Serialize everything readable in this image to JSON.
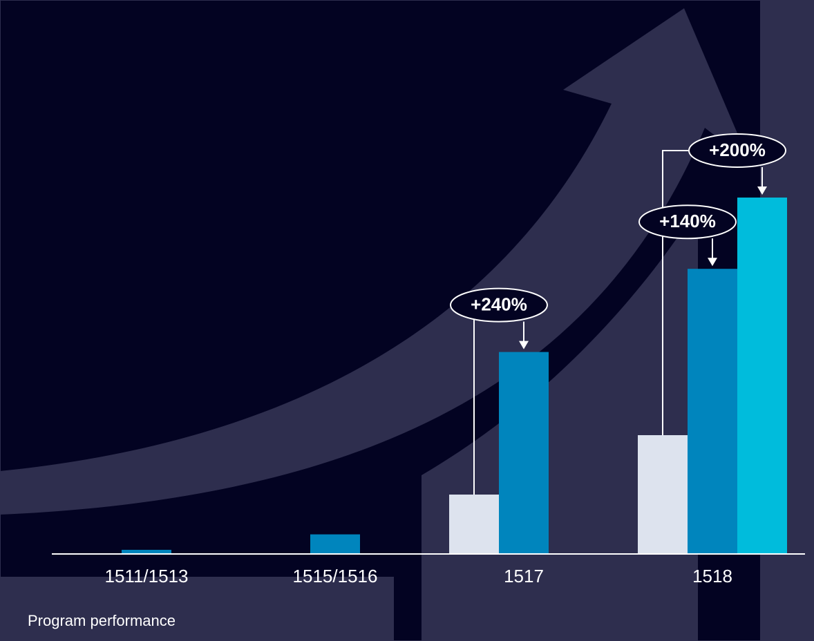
{
  "chart_data": {
    "type": "bar",
    "categories": [
      "1511/1513",
      "1515/1516",
      "1517",
      "1518"
    ],
    "series": [
      {
        "color": "#dde3ee",
        "values": [
          null,
          null,
          100,
          200
        ]
      },
      {
        "color": "#0085bd",
        "values": [
          7,
          33,
          340,
          480
        ]
      },
      {
        "color": "#00bcdc",
        "values": [
          null,
          null,
          null,
          600
        ]
      }
    ],
    "ylim": [
      0,
      700
    ],
    "annotations": [
      "+240%",
      "+140%",
      "+200%"
    ],
    "caption": "Program performance"
  }
}
